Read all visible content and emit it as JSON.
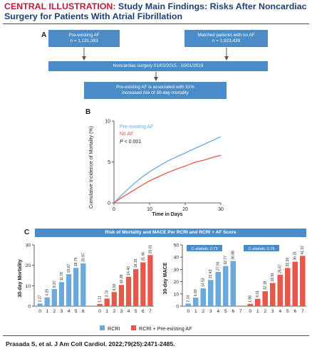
{
  "header": {
    "tag": "CENTRAL ILLUSTRATION:",
    "title_line1": " Study Main Findings: Risks After Noncardiac",
    "title_line2": "Surgery for Patients With Atrial Fibrillation"
  },
  "panel_a": {
    "letter": "A",
    "box_af_line1": "Pre-existing AF",
    "box_af_line2": "n = 1,131,383",
    "box_noaf_line1": "Matched patients with no AF",
    "box_noaf_line2": "n = 1,923,438",
    "box_surgery": "Noncardiac surgery 01/01/2015 - 10/01/2019",
    "box_result_line1": "Pre-existing AF is associated with 31%",
    "box_result_line2": "increased risk of 30-day mortality"
  },
  "panel_b": {
    "letter": "B",
    "legend_af": "Pre-existing AF",
    "legend_noaf": "No AF",
    "pvalue_p": "P",
    "pvalue_rest": " < 0.001"
  },
  "panel_c": {
    "letter": "C",
    "banner": "Risk of Mortality and MACE Per RCRI and RCRI + AF Score",
    "cstat_rcri": "C-statistic 0.73",
    "cstat_rcri_af": "C-statistic 0.76",
    "legend_rcri": "RCRI",
    "legend_rcri_af": "RCRI + Pre-existing AF"
  },
  "colors": {
    "blue": "#6aa9dc",
    "red": "#e8574a",
    "box_blue": "#4a8cc7",
    "title_red": "#b81d3c",
    "title_navy": "#1f3f73"
  },
  "citation": "Prasada S, et al. J Am Coll Cardiol. 2022;79(25):2471-2485.",
  "chart_data": [
    {
      "id": "km",
      "type": "line",
      "title": "",
      "xlabel": "Time in Days",
      "ylabel": "Cumulative Incidence of Mortality (%)",
      "xlim": [
        0,
        30
      ],
      "ylim": [
        0,
        10
      ],
      "xticks": [
        0,
        10,
        20,
        30
      ],
      "yticks": [
        0,
        5,
        10
      ],
      "series": [
        {
          "name": "Pre-existing AF",
          "color": "#6aa9dc",
          "x": [
            0,
            2,
            5,
            8,
            10,
            13,
            15,
            18,
            20,
            23,
            25,
            28,
            30
          ],
          "y": [
            0,
            0.9,
            2.1,
            3.2,
            3.8,
            4.6,
            5.1,
            5.7,
            6.1,
            6.7,
            7.1,
            7.7,
            8.1
          ]
        },
        {
          "name": "No AF",
          "color": "#e8574a",
          "x": [
            0,
            2,
            5,
            8,
            10,
            13,
            15,
            18,
            20,
            23,
            25,
            28,
            30
          ],
          "y": [
            0,
            0.6,
            1.4,
            2.2,
            2.7,
            3.3,
            3.7,
            4.2,
            4.5,
            5.0,
            5.2,
            5.6,
            5.8
          ]
        }
      ]
    },
    {
      "id": "mortality",
      "type": "bar",
      "ylabel": "30-day Mortality",
      "ylim": [
        0,
        30
      ],
      "yticks": [
        0,
        10,
        20,
        30
      ],
      "series": [
        {
          "name": "RCRI",
          "color": "#6aa9dc",
          "categories": [
            "0",
            "1",
            "2",
            "3",
            "4",
            "5",
            "6"
          ],
          "values": [
            1.27,
            4.29,
            8.37,
            11.78,
            15.67,
            18.75,
            20.97
          ],
          "labels": [
            "1.27",
            "4.29",
            "8.37",
            "11.78",
            "15.67",
            "18.75",
            "20.97"
          ]
        },
        {
          "name": "RCRI + Pre-existing AF",
          "color": "#e8574a",
          "categories": [
            "0",
            "1",
            "2",
            "3",
            "4",
            "5",
            "6",
            "7"
          ],
          "values": [
            1.11,
            3.74,
            6.92,
            10.38,
            14.4,
            18.15,
            21.46,
            25.01
          ],
          "labels": [
            "1.11",
            "3.74",
            "6.92",
            "10.38",
            "14.40",
            "18.15",
            "21.46",
            "25.01"
          ]
        }
      ]
    },
    {
      "id": "mace",
      "type": "bar",
      "ylabel": "30-day MACE",
      "ylim": [
        0,
        50
      ],
      "yticks": [
        0,
        10,
        20,
        30,
        40,
        50
      ],
      "series": [
        {
          "name": "RCRI",
          "color": "#6aa9dc",
          "categories": [
            "0",
            "1",
            "2",
            "3",
            "4",
            "5",
            "6",
            "7"
          ],
          "values": [
            2.14,
            6.93,
            14.53,
            21.43,
            27.93,
            32.77,
            36.88,
            null
          ],
          "labels": [
            "2.14",
            "6.93",
            "14.53",
            "21.43",
            "27.93",
            "32.77",
            "36.88",
            ""
          ]
        },
        {
          "name": "RCRI + Pre-existing AF",
          "color": "#e8574a",
          "categories": [
            "0",
            "1",
            "2",
            "3",
            "4",
            "5",
            "6",
            "7"
          ],
          "values": [
            1.88,
            6.01,
            12.18,
            18.91,
            25.67,
            31.16,
            36.31,
            41.07
          ],
          "labels": [
            "1.88",
            "6.01",
            "12.18",
            "18.91",
            "25.67",
            "31.16",
            "36.31",
            "41.07"
          ]
        }
      ]
    }
  ]
}
